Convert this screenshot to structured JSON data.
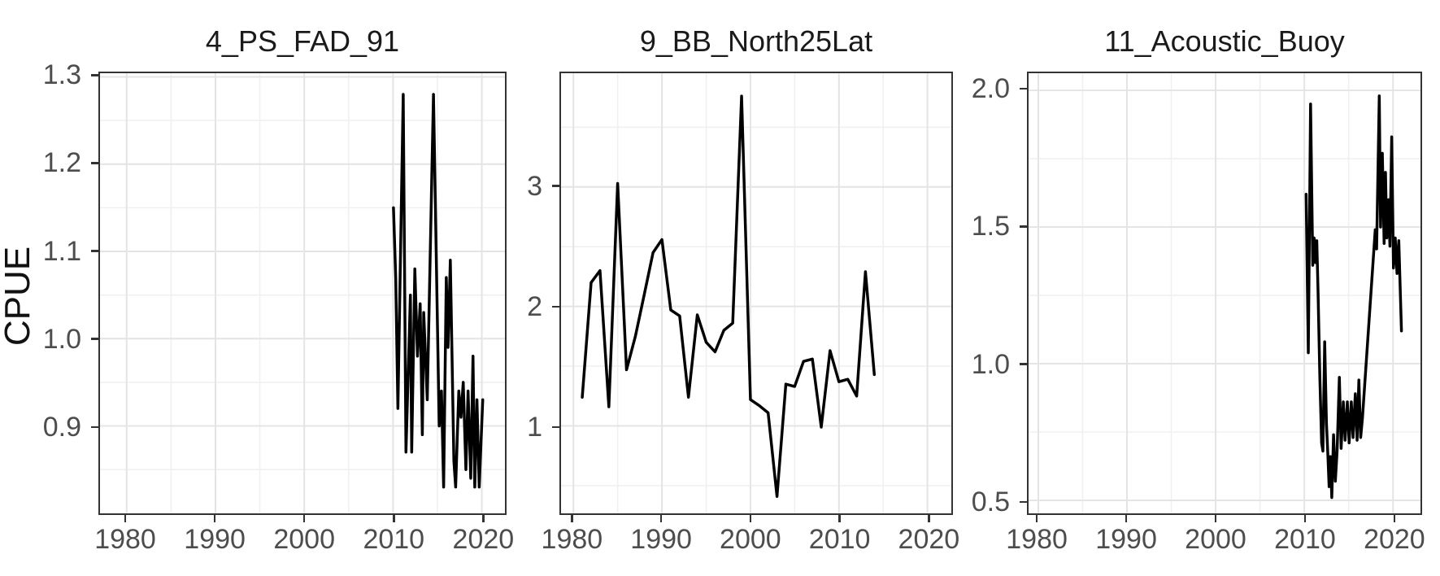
{
  "figure": {
    "ylabel": "CPUE",
    "background": "#FFFFFF",
    "line_color": "#000000",
    "panel_border_color": "#333333",
    "grid_major_color": "#E4E4E4",
    "grid_minor_color": "#F0F0F0",
    "tick_mark_color": "#333333",
    "tick_label_color": "#4D4D4D",
    "title_color": "#1A1A1A"
  },
  "chart_data": [
    {
      "type": "line",
      "title": "4_PS_FAD_91",
      "xlabel": "",
      "ylabel": "CPUE",
      "legend": "none",
      "grid": "major+minor",
      "x_range": [
        1977.0,
        2022.6
      ],
      "y_range": [
        0.8,
        1.304
      ],
      "x_ticks": [
        1980,
        1990,
        2000,
        2010,
        2020
      ],
      "x_tick_labels": [
        "1980",
        "1990",
        "2000",
        "2010",
        "2020"
      ],
      "x_minor": [
        1985,
        1995,
        2005,
        2015
      ],
      "y_ticks": [
        0.9,
        1.0,
        1.1,
        1.2,
        1.3
      ],
      "y_tick_labels": [
        "0.9",
        "1.0",
        "1.1",
        "1.2",
        "1.3"
      ],
      "y_minor": [
        0.85,
        0.95,
        1.05,
        1.15,
        1.25
      ],
      "x": [
        2010.05,
        2010.3,
        2010.55,
        2011.15,
        2011.45,
        2011.95,
        2012.1,
        2012.45,
        2012.75,
        2013.05,
        2013.3,
        2013.45,
        2013.85,
        2014.55,
        2015.2,
        2015.45,
        2015.7,
        2016.0,
        2016.2,
        2016.45,
        2016.85,
        2017.05,
        2017.4,
        2017.65,
        2017.9,
        2018.2,
        2018.45,
        2018.75,
        2019.0,
        2019.2,
        2019.45,
        2019.7,
        2020.1
      ],
      "y": [
        1.15,
        1.07,
        0.92,
        1.28,
        0.87,
        1.05,
        0.87,
        1.08,
        0.98,
        1.04,
        0.89,
        1.03,
        0.93,
        1.28,
        0.9,
        0.94,
        0.83,
        1.07,
        0.99,
        1.09,
        0.86,
        0.83,
        0.94,
        0.91,
        0.95,
        0.85,
        0.94,
        0.84,
        0.98,
        0.83,
        0.93,
        0.83,
        0.93
      ]
    },
    {
      "type": "line",
      "title": "9_BB_North25Lat",
      "xlabel": "",
      "ylabel": "CPUE",
      "legend": "none",
      "grid": "major+minor",
      "x_range": [
        1978.6,
        2022.7
      ],
      "y_range": [
        0.27,
        3.95
      ],
      "x_ticks": [
        1980,
        1990,
        2000,
        2010,
        2020
      ],
      "x_tick_labels": [
        "1980",
        "1990",
        "2000",
        "2010",
        "2020"
      ],
      "x_minor": [
        1985,
        1995,
        2005,
        2015
      ],
      "y_ticks": [
        1,
        2,
        3
      ],
      "y_tick_labels": [
        "1",
        "2",
        "3"
      ],
      "y_minor": [
        0.5,
        1.5,
        2.5,
        3.5
      ],
      "x": [
        1981,
        1982,
        1983,
        1984,
        1985,
        1986,
        1987,
        1988,
        1989,
        1990,
        1991,
        1992,
        1993,
        1994,
        1995,
        1996,
        1997,
        1998,
        1999,
        2000,
        2001,
        2002,
        2003,
        2004,
        2005,
        2006,
        2007,
        2008,
        2009,
        2010,
        2011,
        2012,
        2013,
        2014
      ],
      "y": [
        1.24,
        2.2,
        2.3,
        1.16,
        3.03,
        1.47,
        1.75,
        2.1,
        2.45,
        2.56,
        1.97,
        1.92,
        1.24,
        1.93,
        1.7,
        1.62,
        1.8,
        1.86,
        3.76,
        1.22,
        1.17,
        1.11,
        0.41,
        1.35,
        1.33,
        1.54,
        1.56,
        0.99,
        1.63,
        1.37,
        1.39,
        1.25,
        2.29,
        1.43
      ]
    },
    {
      "type": "line",
      "title": "11_Acoustic_Buoy",
      "xlabel": "",
      "ylabel": "CPUE",
      "legend": "none",
      "grid": "major+minor",
      "x_range": [
        1978.9,
        2023.1
      ],
      "y_range": [
        0.453,
        2.062
      ],
      "x_ticks": [
        1980,
        1990,
        2000,
        2010,
        2020
      ],
      "x_tick_labels": [
        "1980",
        "1990",
        "2000",
        "2010",
        "2020"
      ],
      "x_minor": [
        1985,
        1995,
        2005,
        2015
      ],
      "y_ticks": [
        0.5,
        1.0,
        1.5,
        2.0
      ],
      "y_tick_labels": [
        "0.5",
        "1.0",
        "1.5",
        "2.0"
      ],
      "y_minor": [
        0.75,
        1.25,
        1.75
      ],
      "x": [
        2010.2,
        2010.45,
        2010.7,
        2010.95,
        2011.1,
        2011.25,
        2011.4,
        2011.55,
        2011.75,
        2011.95,
        2012.1,
        2012.3,
        2012.5,
        2012.65,
        2012.8,
        2012.95,
        2013.1,
        2013.3,
        2013.5,
        2013.7,
        2013.95,
        2014.15,
        2014.4,
        2014.6,
        2014.85,
        2015.05,
        2015.3,
        2015.5,
        2015.75,
        2015.95,
        2016.15,
        2016.35,
        2016.55,
        2018.0,
        2018.15,
        2018.45,
        2018.6,
        2018.8,
        2019.0,
        2019.15,
        2019.3,
        2019.5,
        2019.65,
        2019.85,
        2020.05,
        2020.25,
        2020.45,
        2020.65,
        2020.95
      ],
      "y": [
        1.62,
        1.04,
        1.95,
        1.36,
        1.46,
        1.37,
        1.45,
        1.26,
        0.95,
        0.71,
        0.68,
        1.08,
        0.78,
        0.67,
        0.55,
        0.66,
        0.51,
        0.74,
        0.57,
        0.68,
        0.95,
        0.69,
        0.86,
        0.72,
        0.86,
        0.71,
        0.86,
        0.73,
        0.89,
        0.72,
        0.94,
        0.73,
        0.8,
        1.49,
        1.42,
        1.98,
        1.5,
        1.77,
        1.44,
        1.7,
        1.46,
        1.6,
        1.43,
        1.83,
        1.35,
        1.46,
        1.33,
        1.45,
        1.12
      ]
    }
  ]
}
